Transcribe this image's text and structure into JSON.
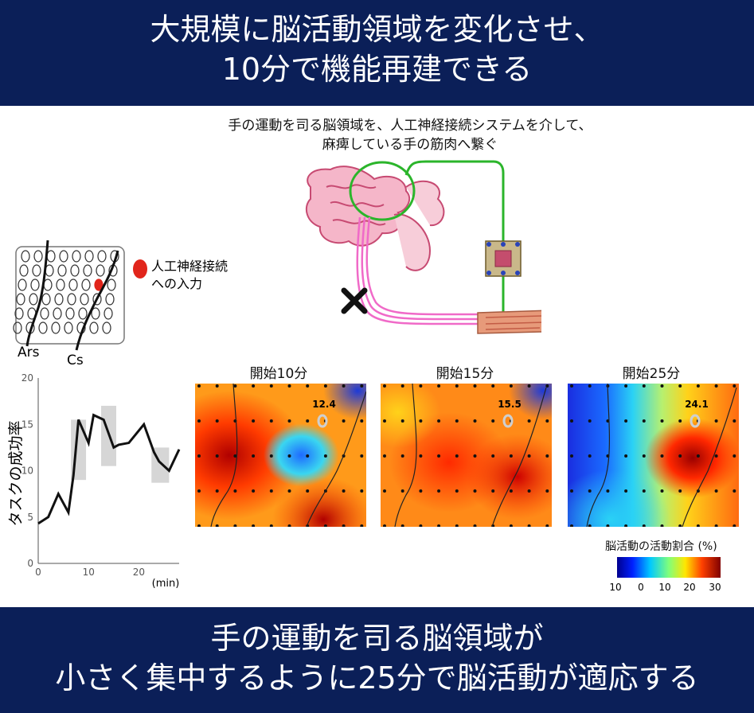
{
  "header": {
    "line1": "大規模に脳活動領域を変化させ、",
    "line2": "10分で機能再建できる"
  },
  "caption": {
    "line1": "手の運動を司る脳領域を、人工神経接続システムを介して、",
    "line2": "麻痺している手の筋肉へ繋ぐ"
  },
  "electrode": {
    "legend_line1": "人工神経接続",
    "legend_line2": "への入力",
    "label_ars": "Ars",
    "label_cs": "Cs"
  },
  "line_chart": {
    "ylabel": "タスクの成功率",
    "xunit": "(min)",
    "yticks": [
      "0",
      "5",
      "10",
      "15",
      "20"
    ],
    "xticks": [
      "0",
      "10",
      "20"
    ]
  },
  "chart_data": {
    "type": "line",
    "ylabel": "タスクの成功率",
    "xlabel": "(min)",
    "xlim": [
      0,
      28
    ],
    "ylim": [
      0,
      20
    ],
    "x": [
      0,
      2,
      4,
      6,
      7,
      8,
      10,
      11,
      13,
      15,
      16,
      18,
      21,
      23,
      24,
      26,
      28
    ],
    "values": [
      4.3,
      5.0,
      7.5,
      5.5,
      9.5,
      15.5,
      13.0,
      16.0,
      15.5,
      12.5,
      12.8,
      13.0,
      15.0,
      12.0,
      11.0,
      10.0,
      12.3
    ],
    "shaded_ranges": [
      {
        "x": [
          6.5,
          9.5
        ],
        "y": [
          9.0,
          15.5
        ]
      },
      {
        "x": [
          12.5,
          15.5
        ],
        "y": [
          10.5,
          17.0
        ]
      },
      {
        "x": [
          22.5,
          26
        ],
        "y": [
          8.7,
          12.5
        ]
      }
    ]
  },
  "heatmaps": [
    {
      "title": "開始10分",
      "value": "12.4"
    },
    {
      "title": "開始15分",
      "value": "15.5"
    },
    {
      "title": "開始25分",
      "value": "24.1"
    }
  ],
  "colorbar": {
    "title": "脳活動の活動割合 (%)",
    "ticks": [
      "-10",
      "0",
      "10",
      "20",
      "30"
    ]
  },
  "footer": {
    "line1": "手の運動を司る脳領域が",
    "line2": "小さく集中するように25分で脳活動が適応する"
  },
  "colors": {
    "banner": "#0b1f58",
    "wire": "#2bb52b",
    "pathway": "#f06ac8"
  }
}
